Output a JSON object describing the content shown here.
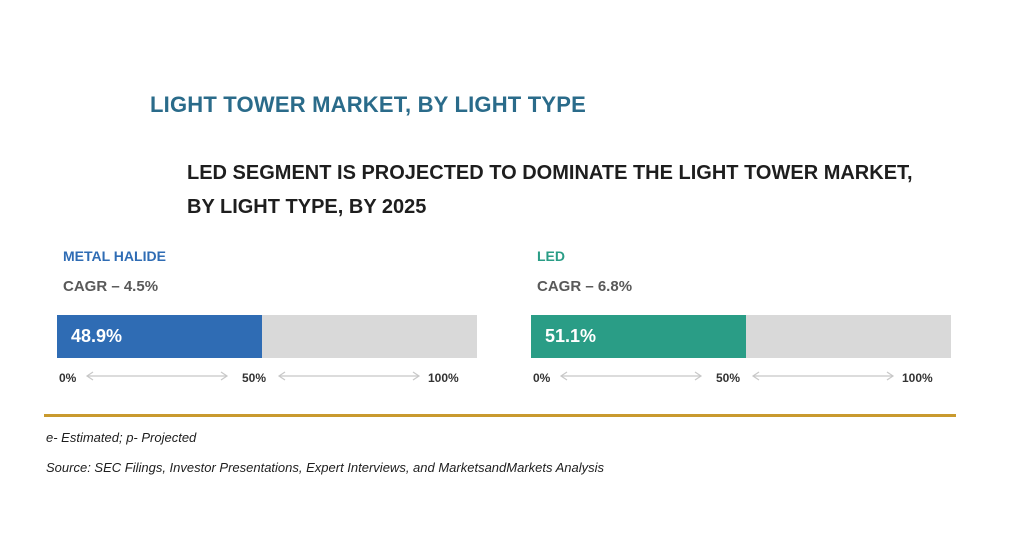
{
  "title": "LIGHT TOWER MARKET, BY LIGHT TYPE",
  "subtitle_line1": "LED SEGMENT IS PROJECTED TO DOMINATE THE LIGHT TOWER MARKET,",
  "subtitle_line2": "BY LIGHT TYPE, BY 2025",
  "colors": {
    "title": "#2a6b8a",
    "metal_halide": "#2f6cb4",
    "led": "#2a9d86",
    "track": "#d9d9d9",
    "divider": "#c99a2e"
  },
  "chart_data": {
    "type": "bar",
    "title": "LIGHT TOWER MARKET, BY LIGHT TYPE",
    "ylim": [
      0,
      100
    ],
    "axis_ticks": [
      "0%",
      "50%",
      "100%"
    ],
    "segments": [
      {
        "name": "METAL HALIDE",
        "cagr_text": "CAGR – 4.5%",
        "value": 48.9,
        "value_label": "48.9%",
        "color": "#2f6cb4"
      },
      {
        "name": "LED",
        "cagr_text": "CAGR – 6.8%",
        "value": 51.1,
        "value_label": "51.1%",
        "color": "#2a9d86"
      }
    ]
  },
  "footnote": "e- Estimated; p- Projected",
  "source": "Source: SEC Filings, Investor Presentations, Expert Interviews, and MarketsandMarkets Analysis"
}
